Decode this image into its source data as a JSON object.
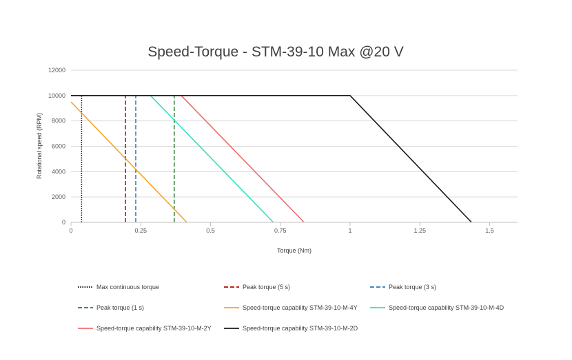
{
  "chart_data": {
    "type": "line",
    "title": "Speed-Torque -  STM-39-10 Max @20 V",
    "xlabel": "Torque (Nm)",
    "ylabel": "Rotational speed (RPM)",
    "xlim": [
      0,
      1.6
    ],
    "ylim": [
      0,
      12000
    ],
    "x_ticks": [
      0,
      0.25,
      0.5,
      0.75,
      1,
      1.25,
      1.5
    ],
    "x_tick_labels": [
      "0",
      "0.25",
      "0.5",
      "0.75",
      "1",
      "1.25",
      "1.5"
    ],
    "y_ticks": [
      0,
      2000,
      4000,
      6000,
      8000,
      10000,
      12000
    ],
    "y_tick_labels": [
      "0",
      "2000",
      "4000",
      "6000",
      "8000",
      "10000",
      "12000"
    ],
    "grid": "horizontal",
    "legend_position": "bottom",
    "series": [
      {
        "name": "Max continuous torque",
        "color": "#000000",
        "dash": "dotted",
        "points": [
          [
            0.038,
            0
          ],
          [
            0.038,
            10000
          ]
        ]
      },
      {
        "name": "Peak torque (5 s)",
        "color": "#c00000",
        "dash": "dashed",
        "points": [
          [
            0.195,
            0
          ],
          [
            0.195,
            10000
          ]
        ]
      },
      {
        "name": "Peak torque (3 s)",
        "color": "#2e75b6",
        "dash": "dashed",
        "points": [
          [
            0.232,
            0
          ],
          [
            0.232,
            10000
          ]
        ]
      },
      {
        "name": "Peak torque (1 s)",
        "color": "#2e7d32",
        "dash": "dashed",
        "points": [
          [
            0.37,
            0
          ],
          [
            0.37,
            10000
          ]
        ]
      },
      {
        "name": "Speed-torque capability STM-39-10-M-4Y",
        "color": "#f5a623",
        "dash": "solid",
        "points": [
          [
            0,
            9500
          ],
          [
            0.415,
            0
          ]
        ]
      },
      {
        "name": "Speed-torque capability STM-39-10-M-4D",
        "color": "#33e0c0",
        "dash": "solid",
        "points": [
          [
            0,
            10000
          ],
          [
            0.285,
            10000
          ],
          [
            0.725,
            0
          ]
        ]
      },
      {
        "name": "Speed-torque capability STM-39-10-M-2Y",
        "color": "#f06b6b",
        "dash": "solid",
        "points": [
          [
            0,
            10000
          ],
          [
            0.395,
            10000
          ],
          [
            0.835,
            0
          ]
        ]
      },
      {
        "name": "Speed-torque capability STM-39-10-M-2D",
        "color": "#1a1a1a",
        "dash": "solid",
        "points": [
          [
            0,
            10000
          ],
          [
            1.0,
            10000
          ],
          [
            1.435,
            0
          ]
        ]
      }
    ]
  }
}
